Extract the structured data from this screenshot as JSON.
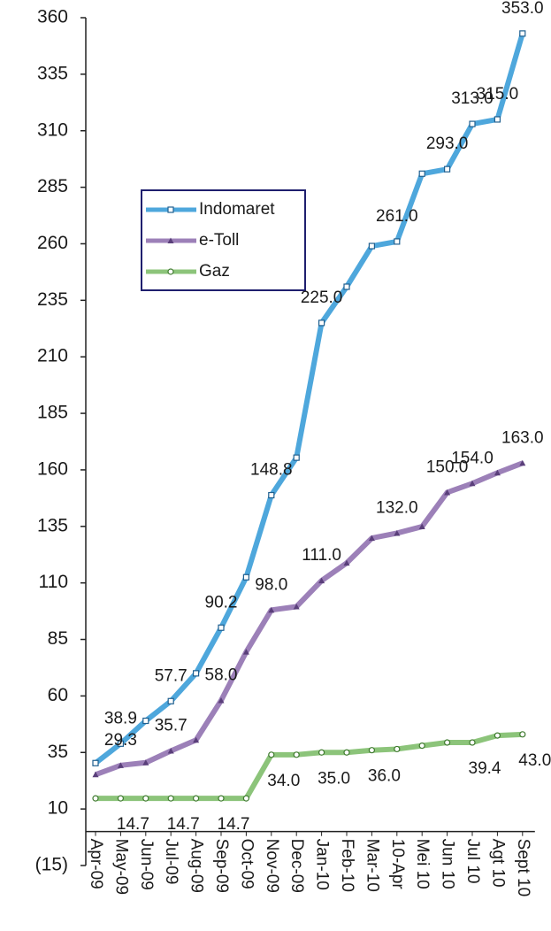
{
  "chart_data": {
    "type": "line",
    "categories": [
      "Apr-09",
      "May-09",
      "Jun-09",
      "Jul-09",
      "Aug-09",
      "Sep-09",
      "Oct-09",
      "Nov-09",
      "Dec-09",
      "Jan-10",
      "Feb-10",
      "Mar-10",
      "10-Apr",
      "Mei 10",
      "Jun 10",
      "Jul 10",
      "Agt 10",
      "Sept 10"
    ],
    "series": [
      {
        "name": "Indomaret",
        "color": "#4ea7dc",
        "values": [
          30.3,
          38.9,
          49,
          57.7,
          70,
          90.2,
          112.5,
          148.8,
          165.4,
          225,
          241,
          259,
          261,
          291,
          293,
          313,
          315,
          353
        ],
        "value_labels": [
          null,
          "38.9",
          null,
          "57.7",
          null,
          "90.2",
          null,
          "148.8",
          null,
          "225.0",
          null,
          null,
          "261.0",
          null,
          "293.0",
          "313.0",
          "315.0",
          "353.0"
        ]
      },
      {
        "name": "e-Toll",
        "color": "#9c80b8",
        "values": [
          25.2,
          29.3,
          30.5,
          35.7,
          40.5,
          58,
          79.5,
          98,
          99.5,
          111,
          118.8,
          129.8,
          132,
          134.9,
          150,
          154,
          158.7,
          163
        ],
        "value_labels": [
          null,
          "29.3",
          null,
          "35.7",
          null,
          "58.0",
          null,
          "98.0",
          null,
          "111.0",
          null,
          null,
          "132.0",
          null,
          "150.0",
          "154.0",
          null,
          "163.0"
        ]
      },
      {
        "name": "Gaz",
        "color": "#8cc47a",
        "values": [
          14.7,
          14.7,
          14.7,
          14.7,
          14.7,
          14.7,
          14.7,
          34,
          34,
          35,
          35,
          36,
          36.5,
          38,
          39.4,
          39.4,
          42.5,
          43
        ],
        "value_labels": [
          null,
          "14.7",
          null,
          "14.7",
          null,
          "14.7",
          null,
          "34.0",
          null,
          "35.0",
          null,
          "36.0",
          null,
          null,
          null,
          "39.4",
          null,
          "43.0"
        ]
      }
    ],
    "ylim": [
      -15,
      360
    ],
    "yticks": [
      {
        "value": -15,
        "label": "(15)"
      },
      10,
      35,
      60,
      85,
      110,
      135,
      160,
      185,
      210,
      235,
      260,
      285,
      310,
      335,
      360
    ],
    "legend": "upper left"
  }
}
